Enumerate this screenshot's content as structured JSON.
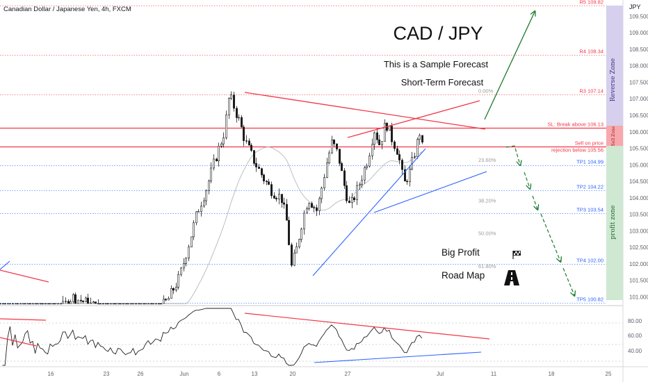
{
  "symbol_title": "Canadian Dollar / Japanese Yen, 4h, FXCM",
  "currency": "JPY",
  "annotations": {
    "pair": "CAD / JPY",
    "subtitle1": "This is a Sample Forecast",
    "subtitle2": "Short-Term Forecast",
    "big_profit": "Big Profit",
    "road_map": "Road Map"
  },
  "zones": {
    "reverse": "Reverse Zone",
    "sell": "Sell Zone",
    "profit": "profit zone"
  },
  "colors": {
    "red": "#f23645",
    "blue": "#2962ff",
    "green": "#1b7b2c",
    "reverse_zone": "#d6d0ee",
    "sell_zone": "#f7a8ad",
    "profit_zone": "#cfe8d2"
  },
  "chart_data": {
    "type": "candlestick",
    "price_axis": {
      "ticks": [
        "109.500",
        "109.000",
        "108.500",
        "108.000",
        "107.500",
        "107.000",
        "106.500",
        "106.000",
        "105.500",
        "105.000",
        "104.500",
        "104.000",
        "103.500",
        "103.000",
        "102.500",
        "102.000",
        "101.500",
        "101.000"
      ],
      "range": [
        100.75,
        109.85
      ]
    },
    "time_axis": {
      "ticks": [
        "16",
        "23",
        "26",
        "Jun",
        "6",
        "13",
        "20",
        "27",
        "Jul",
        "11",
        "18",
        "25"
      ]
    },
    "levels": [
      {
        "label": "R5 109.82",
        "value": 109.82,
        "color": "red",
        "style": "dotted"
      },
      {
        "label": "R4 108.34",
        "value": 108.34,
        "color": "red",
        "style": "dotted"
      },
      {
        "label": "R3 107.14",
        "value": 107.14,
        "color": "red",
        "style": "dotted"
      },
      {
        "label": "SL: Break above 106.13",
        "value": 106.13,
        "color": "red",
        "style": "solid"
      },
      {
        "label": "Sell on price",
        "label2": "rejection below 105.56",
        "value": 105.56,
        "color": "red",
        "style": "solid"
      },
      {
        "label": "TP1 104.99",
        "value": 104.99,
        "color": "blue",
        "style": "dotted"
      },
      {
        "label": "TP2 104.22",
        "value": 104.22,
        "color": "blue",
        "style": "dotted"
      },
      {
        "label": "TP3 103.54",
        "value": 103.54,
        "color": "blue",
        "style": "dotted"
      },
      {
        "label": "TP4 102.00",
        "value": 102.0,
        "color": "blue",
        "style": "dotted"
      },
      {
        "label": "TP5 100.82",
        "value": 100.82,
        "color": "blue",
        "style": "dotted"
      }
    ],
    "fibonacci": [
      {
        "label": "0.00%",
        "value": 107.14
      },
      {
        "label": "23.60%",
        "value": 105.05
      },
      {
        "label": "38.20%",
        "value": 103.82
      },
      {
        "label": "50.00%",
        "value": 102.83
      },
      {
        "label": "61.80%",
        "value": 101.83
      }
    ],
    "rsi_axis": {
      "ticks": [
        "80.00",
        "60.00",
        "40.00"
      ]
    },
    "price_path": [
      {
        "t": 0.0,
        "p": 100.45
      },
      {
        "t": 0.04,
        "p": 100.6
      },
      {
        "t": 0.08,
        "p": 100.2
      },
      {
        "t": 0.12,
        "p": 101.0
      },
      {
        "t": 0.16,
        "p": 100.7
      },
      {
        "t": 0.2,
        "p": 100.3
      },
      {
        "t": 0.23,
        "p": 100.1
      },
      {
        "t": 0.26,
        "p": 100.5
      },
      {
        "t": 0.28,
        "p": 100.9
      },
      {
        "t": 0.3,
        "p": 101.6
      },
      {
        "t": 0.315,
        "p": 102.6
      },
      {
        "t": 0.33,
        "p": 103.6
      },
      {
        "t": 0.345,
        "p": 104.3
      },
      {
        "t": 0.36,
        "p": 105.2
      },
      {
        "t": 0.375,
        "p": 106.0
      },
      {
        "t": 0.383,
        "p": 107.1
      },
      {
        "t": 0.39,
        "p": 106.8
      },
      {
        "t": 0.4,
        "p": 106.3
      },
      {
        "t": 0.41,
        "p": 105.7
      },
      {
        "t": 0.425,
        "p": 105.1
      },
      {
        "t": 0.44,
        "p": 104.6
      },
      {
        "t": 0.455,
        "p": 104.2
      },
      {
        "t": 0.47,
        "p": 104.0
      },
      {
        "t": 0.48,
        "p": 103.2
      },
      {
        "t": 0.487,
        "p": 101.9
      },
      {
        "t": 0.495,
        "p": 102.4
      },
      {
        "t": 0.505,
        "p": 103.3
      },
      {
        "t": 0.515,
        "p": 104.0
      },
      {
        "t": 0.53,
        "p": 103.6
      },
      {
        "t": 0.545,
        "p": 105.0
      },
      {
        "t": 0.555,
        "p": 105.7
      },
      {
        "t": 0.565,
        "p": 105.3
      },
      {
        "t": 0.575,
        "p": 104.4
      },
      {
        "t": 0.585,
        "p": 103.7
      },
      {
        "t": 0.6,
        "p": 104.4
      },
      {
        "t": 0.615,
        "p": 105.2
      },
      {
        "t": 0.625,
        "p": 106.1
      },
      {
        "t": 0.635,
        "p": 105.6
      },
      {
        "t": 0.645,
        "p": 106.3
      },
      {
        "t": 0.655,
        "p": 105.8
      },
      {
        "t": 0.665,
        "p": 105.4
      },
      {
        "t": 0.675,
        "p": 104.4
      },
      {
        "t": 0.685,
        "p": 104.8
      },
      {
        "t": 0.695,
        "p": 105.5
      },
      {
        "t": 0.703,
        "p": 106.1
      },
      {
        "t": 0.708,
        "p": 105.0
      }
    ]
  }
}
